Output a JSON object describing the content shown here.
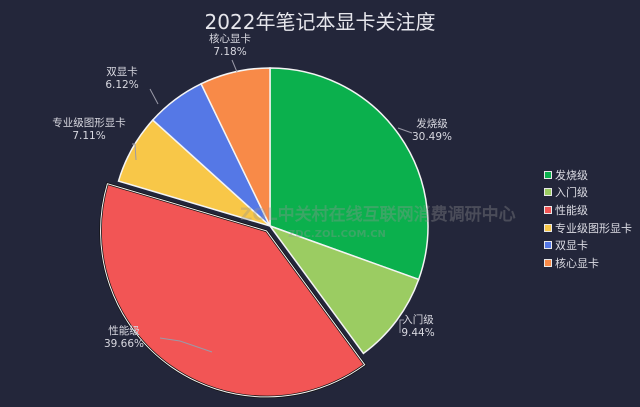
{
  "chart_data": {
    "type": "pie",
    "title": "2022年笔记本显卡关注度",
    "categories": [
      "发烧级",
      "入门级",
      "性能级",
      "专业级图形显卡",
      "双显卡",
      "核心显卡"
    ],
    "values": [
      30.49,
      9.44,
      39.66,
      7.11,
      6.12,
      7.18
    ],
    "value_labels": [
      "30.49%",
      "9.44%",
      "39.66%",
      "7.11%",
      "6.12%",
      "7.18%"
    ],
    "colors": [
      "#0bb04d",
      "#9bcc62",
      "#f25555",
      "#f8c748",
      "#5578e6",
      "#f88a48"
    ],
    "start_angle": "12 o'clock, clockwise",
    "exploded": [
      "性能级"
    ],
    "legend_position": "right",
    "unit": "%"
  },
  "legend": [
    {
      "label": "发烧级",
      "color": "#0bb04d"
    },
    {
      "label": "入门级",
      "color": "#9bcc62"
    },
    {
      "label": "性能级",
      "color": "#f25555"
    },
    {
      "label": "专业级图形显卡",
      "color": "#f8c748"
    },
    {
      "label": "双显卡",
      "color": "#5578e6"
    },
    {
      "label": "核心显卡",
      "color": "#f88a48"
    }
  ],
  "watermark": {
    "line1": "ZOL中关村在线互联网消费调研中心",
    "line2": "ZDC.ZOL.COM.CN"
  }
}
